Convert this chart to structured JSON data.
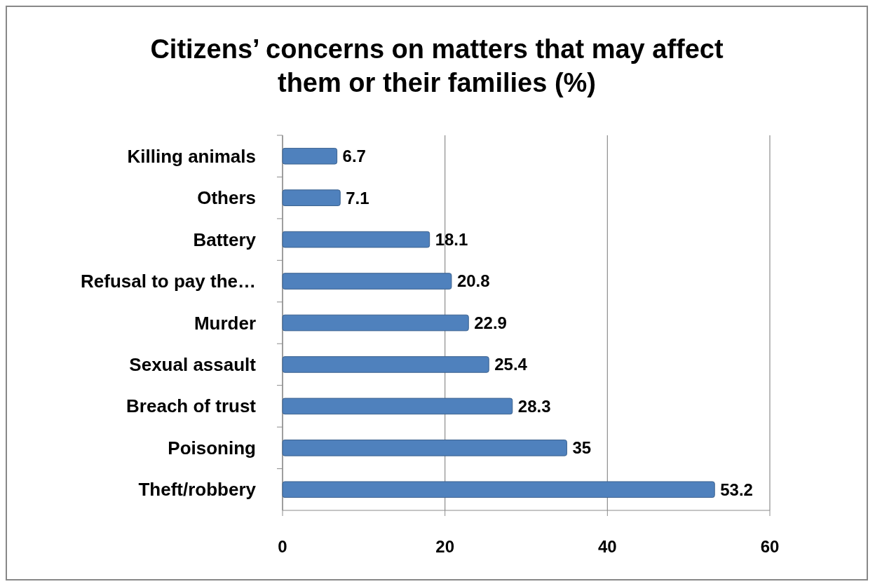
{
  "chart_data": {
    "type": "bar",
    "orientation": "horizontal",
    "title": "Citizens’ concerns on matters that may affect them or their families (%)",
    "categories": [
      "Killing animals",
      "Others",
      "Battery",
      "Refusal to pay the…",
      "Murder",
      "Sexual assault",
      "Breach of trust",
      "Poisoning",
      "Theft/robbery"
    ],
    "values": [
      6.7,
      7.1,
      18.1,
      20.8,
      22.9,
      25.4,
      28.3,
      35,
      53.2
    ],
    "color": "#4f81bd",
    "xlim": [
      0,
      60
    ],
    "xticks": [
      0,
      20,
      40,
      60
    ],
    "grid": "x",
    "data_labels": true
  }
}
